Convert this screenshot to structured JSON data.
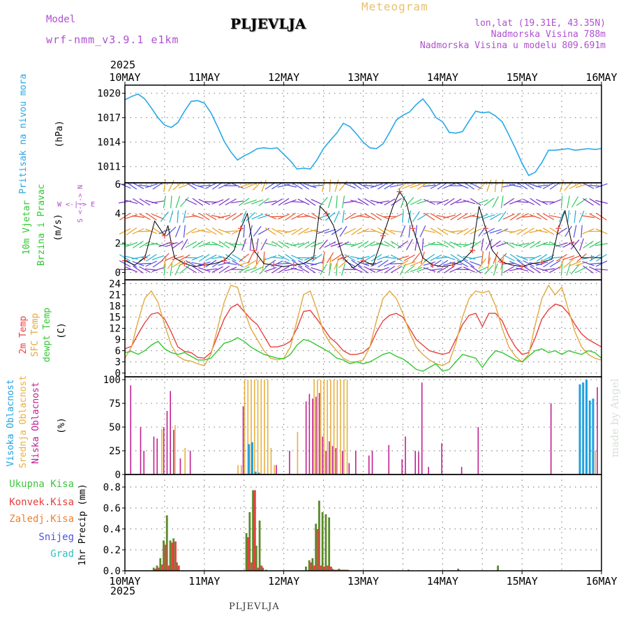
{
  "header": {
    "model_label": "Model",
    "model_name": "wrf-nmm_v3.9.1 e1km",
    "station": "PLJEVLJA",
    "meteogram": "Meteogram",
    "lonlat": "lon,lat (19.31E, 43.35N)",
    "elevation": "Nadmorska Visina 788m",
    "model_elevation": "Nadmorska Visina u modelu 809.691m",
    "year_top": "2025",
    "year_bottom": "2025",
    "footer_station": "PLJEVLJA",
    "made_by": "made by Angel"
  },
  "time_axis": {
    "labels": [
      "10MAY",
      "11MAY",
      "12MAY",
      "13MAY",
      "14MAY",
      "15MAY",
      "16MAY"
    ]
  },
  "panel_labels": {
    "pressure": {
      "title": "Pritisak na nivou mora",
      "unit": "(hPa)"
    },
    "wind": {
      "title1": "10m Vjetar",
      "title2": "Brzina i Pravac",
      "unit": "(m/s)",
      "compass": "W <-|-> E",
      "compass_ns": "S <-|-> N"
    },
    "temp": {
      "title1": "2m Temp",
      "title2": "SFC Temp",
      "title3": "dewpt Temp",
      "unit": "(C)"
    },
    "cloud": {
      "title1": "Visoka Oblacnost",
      "title2": "Srednja Oblacnost",
      "title3": "Niska Oblacnost",
      "unit": "(%)"
    },
    "precip": {
      "unit": "1hr Precip (mm)"
    }
  },
  "legend": {
    "precip_items": [
      {
        "label": "Ukupna Kisa",
        "color": "#3cc83c"
      },
      {
        "label": "Konvek.Kisa",
        "color": "#e83c3c"
      },
      {
        "label": "Zaledj.Kisa",
        "color": "#f08030"
      },
      {
        "label": "Snijeg",
        "color": "#5050e0"
      },
      {
        "label": "Grad",
        "color": "#30c0c0"
      }
    ]
  },
  "colors": {
    "pressure": "#28a8e8",
    "temp2m": "#e84040",
    "sfc": "#e0a840",
    "dewpt": "#30c830",
    "high_cloud": "#20a0e0",
    "mid_cloud": "#e8b040",
    "low_cloud": "#c02090",
    "precip_total": "#5a8a2a",
    "precip_conv": "#e84040",
    "wind_speed": "#000000"
  },
  "chart_data": [
    {
      "type": "line",
      "name": "pressure",
      "ylabel": "(hPa)",
      "ylim": [
        1009,
        1021
      ],
      "yticks": [
        1011,
        1014,
        1017,
        1020
      ],
      "x": [
        0,
        2,
        4,
        6,
        8,
        10,
        12,
        14,
        16,
        18,
        20,
        22,
        24,
        26,
        28,
        30,
        32,
        34,
        36,
        38,
        40,
        42,
        44,
        46,
        48,
        50,
        52,
        54,
        56,
        58,
        60,
        62,
        64,
        66,
        68,
        70,
        72,
        74,
        76,
        78,
        80,
        82,
        84,
        86,
        88,
        90,
        92,
        94,
        96,
        98,
        100,
        102,
        104,
        106,
        108,
        110,
        112,
        114,
        116,
        118,
        120,
        122,
        124,
        126,
        128,
        130,
        132,
        134,
        136,
        138,
        140,
        142,
        144
      ],
      "values": [
        1019.2,
        1019.6,
        1019.9,
        1019.3,
        1018.2,
        1017.0,
        1016.1,
        1015.8,
        1016.4,
        1017.8,
        1019.0,
        1019.1,
        1018.8,
        1017.6,
        1015.9,
        1014.1,
        1012.8,
        1011.8,
        1012.3,
        1012.7,
        1013.2,
        1013.3,
        1013.2,
        1013.3,
        1012.5,
        1011.7,
        1010.7,
        1010.8,
        1010.7,
        1011.8,
        1013.2,
        1014.2,
        1015.1,
        1016.3,
        1015.9,
        1015.0,
        1014.0,
        1013.3,
        1013.2,
        1013.8,
        1015.2,
        1016.7,
        1017.3,
        1017.7,
        1018.6,
        1019.3,
        1018.3,
        1017.0,
        1016.5,
        1015.2,
        1015.1,
        1015.3,
        1016.6,
        1017.8,
        1017.6,
        1017.7,
        1017.2,
        1016.5,
        1014.9,
        1013.2,
        1011.4,
        1009.9,
        1010.3,
        1011.5,
        1013.0,
        1013.0,
        1013.1,
        1013.2,
        1013.0,
        1013.1,
        1013.2,
        1013.1,
        1013.2
      ]
    },
    {
      "type": "line",
      "name": "wind",
      "ylabel": "(m/s)",
      "ylim": [
        -0.5,
        6.1
      ],
      "yticks": [
        0,
        2,
        4,
        6
      ],
      "x": [
        0,
        3,
        6,
        9,
        12,
        13,
        14,
        15,
        18,
        21,
        24,
        27,
        30,
        33,
        35,
        37,
        39,
        42,
        45,
        48,
        51,
        54,
        57,
        59,
        61,
        63,
        66,
        69,
        72,
        75,
        78,
        81,
        83,
        85,
        87,
        90,
        93,
        96,
        99,
        102,
        105,
        107,
        109,
        111,
        114,
        117,
        120,
        123,
        126,
        129,
        131,
        133,
        135,
        138,
        141,
        144
      ],
      "values": [
        0.8,
        0.5,
        1.0,
        3.5,
        2.5,
        3.2,
        2.0,
        1.0,
        0.6,
        0.4,
        0.5,
        0.6,
        0.8,
        1.5,
        3.0,
        4.0,
        1.5,
        0.6,
        0.5,
        0.4,
        0.5,
        0.6,
        1.0,
        4.5,
        4.0,
        3.2,
        1.0,
        0.3,
        0.8,
        0.5,
        2.5,
        4.5,
        5.5,
        4.8,
        3.0,
        1.0,
        0.5,
        0.4,
        0.5,
        0.8,
        1.5,
        4.5,
        3.0,
        1.5,
        0.7,
        0.5,
        0.4,
        0.6,
        0.7,
        0.9,
        3.0,
        4.2,
        2.0,
        1.0,
        1.0,
        1.0
      ]
    },
    {
      "type": "line",
      "name": "temperature",
      "ylabel": "(C)",
      "ylim": [
        -1,
        25
      ],
      "yticks": [
        0,
        3,
        6,
        9,
        12,
        15,
        18,
        21,
        24
      ],
      "x": [
        0,
        2,
        4,
        6,
        8,
        10,
        12,
        14,
        16,
        18,
        20,
        22,
        24,
        26,
        28,
        30,
        32,
        34,
        36,
        38,
        40,
        42,
        44,
        46,
        48,
        50,
        52,
        54,
        56,
        58,
        60,
        62,
        64,
        66,
        68,
        70,
        72,
        74,
        76,
        78,
        80,
        82,
        84,
        86,
        88,
        90,
        92,
        94,
        96,
        98,
        100,
        102,
        104,
        106,
        108,
        110,
        112,
        114,
        116,
        118,
        120,
        122,
        124,
        126,
        128,
        130,
        132,
        134,
        136,
        138,
        140,
        142,
        144
      ],
      "series": [
        {
          "key": "temp2m",
          "values": [
            6.5,
            7.2,
            10.5,
            13.5,
            15.8,
            16.2,
            14.5,
            11.0,
            7.0,
            5.8,
            5.5,
            4.2,
            4.0,
            5.5,
            10.0,
            14.5,
            17.5,
            18.5,
            16.5,
            14.5,
            13.0,
            10.0,
            7.0,
            7.0,
            7.5,
            8.5,
            12.0,
            16.5,
            16.8,
            14.5,
            12.0,
            9.5,
            8.0,
            6.0,
            5.0,
            5.0,
            5.5,
            7.0,
            11.0,
            14.0,
            15.5,
            16.0,
            15.0,
            12.0,
            9.0,
            7.5,
            6.0,
            5.5,
            5.0,
            5.5,
            9.0,
            13.0,
            15.5,
            16.0,
            12.5,
            16.0,
            16.0,
            14.0,
            10.0,
            7.0,
            5.0,
            5.5,
            9.5,
            14.5,
            17.0,
            18.5,
            18.0,
            16.0,
            13.0,
            10.5,
            9.0,
            8.0,
            7.0
          ]
        },
        {
          "key": "sfc",
          "values": [
            4.0,
            7.0,
            14.0,
            20.0,
            22.0,
            19.0,
            13.0,
            7.5,
            4.5,
            3.5,
            3.2,
            2.5,
            2.0,
            5.0,
            12.0,
            19.0,
            23.5,
            23.0,
            17.0,
            12.0,
            9.0,
            6.0,
            4.0,
            3.5,
            4.0,
            7.0,
            14.0,
            21.0,
            22.0,
            17.0,
            11.0,
            8.0,
            6.0,
            4.0,
            3.0,
            3.0,
            3.5,
            7.0,
            14.0,
            20.0,
            22.0,
            20.0,
            16.0,
            11.0,
            7.0,
            5.0,
            3.5,
            2.5,
            2.0,
            3.0,
            8.0,
            15.0,
            20.0,
            22.0,
            21.5,
            22.0,
            18.0,
            12.0,
            7.0,
            4.5,
            3.0,
            5.0,
            13.0,
            20.0,
            23.5,
            21.0,
            23.0,
            17.0,
            11.0,
            7.0,
            5.0,
            4.0,
            3.5
          ]
        },
        {
          "key": "dewpt",
          "values": [
            5.5,
            5.8,
            5.0,
            6.0,
            7.5,
            8.5,
            6.5,
            5.5,
            5.0,
            5.5,
            4.5,
            3.5,
            3.5,
            4.0,
            6.0,
            8.0,
            8.5,
            9.5,
            8.5,
            7.0,
            6.0,
            5.0,
            4.5,
            4.0,
            3.8,
            5.0,
            7.5,
            9.0,
            8.5,
            7.5,
            6.5,
            5.5,
            4.0,
            3.5,
            2.5,
            3.0,
            2.5,
            3.0,
            4.0,
            5.0,
            5.5,
            4.5,
            3.8,
            2.5,
            1.0,
            0.5,
            1.5,
            2.5,
            0.5,
            1.0,
            3.0,
            5.0,
            4.5,
            4.0,
            1.5,
            4.0,
            6.0,
            5.5,
            4.5,
            3.5,
            3.0,
            4.5,
            6.0,
            6.5,
            5.5,
            6.0,
            5.0,
            6.0,
            5.5,
            5.0,
            6.0,
            5.5,
            4.0
          ]
        }
      ]
    },
    {
      "type": "bar",
      "name": "cloud",
      "ylabel": "(%)",
      "ylim": [
        0,
        103
      ],
      "yticks": [
        0,
        25,
        50,
        75,
        100
      ],
      "series": [
        {
          "key": "low_cloud",
          "hours": [
            2,
            5,
            6,
            9,
            10,
            12,
            13,
            14,
            15,
            17,
            20,
            36,
            46,
            50,
            55,
            56,
            57,
            58,
            59,
            60,
            61,
            62,
            63,
            64,
            66,
            68,
            70,
            74,
            75,
            80,
            84,
            85,
            88,
            89,
            90,
            92,
            96,
            102,
            107,
            129,
            143
          ],
          "values": [
            94,
            50,
            25,
            40,
            38,
            50,
            67,
            88,
            47,
            17,
            25,
            72,
            10,
            25,
            77,
            85,
            80,
            82,
            86,
            40,
            25,
            35,
            30,
            28,
            25,
            12,
            25,
            20,
            25,
            31,
            16,
            40,
            25,
            24,
            97,
            8,
            33,
            8,
            50,
            75,
            92
          ]
        },
        {
          "key": "mid_cloud",
          "hours": [
            11,
            15,
            18,
            34,
            35,
            36,
            37,
            38,
            39,
            40,
            41,
            42,
            43,
            44,
            45,
            52,
            57,
            58,
            59,
            60,
            61,
            62,
            63,
            64,
            65,
            66,
            67,
            142
          ],
          "values": [
            48,
            52,
            28,
            10,
            10,
            100,
            100,
            100,
            100,
            100,
            100,
            100,
            100,
            28,
            10,
            45,
            100,
            100,
            100,
            100,
            100,
            100,
            100,
            100,
            100,
            100,
            100,
            25
          ]
        },
        {
          "key": "high_cloud",
          "hours": [
            37,
            38,
            39,
            40,
            137,
            138,
            139,
            140,
            141
          ],
          "values": [
            32,
            34,
            3,
            2,
            95,
            97,
            100,
            78,
            80
          ]
        }
      ]
    },
    {
      "type": "bar",
      "name": "precip",
      "ylabel": "1hr Precip (mm)",
      "ylim": [
        0,
        0.92
      ],
      "yticks": [
        0,
        0.2,
        0.4,
        0.6,
        0.8
      ],
      "series": [
        {
          "key": "precip_total",
          "hours": [
            9,
            10,
            11,
            12,
            13,
            14,
            15,
            16,
            37,
            38,
            39,
            40,
            41,
            42,
            43,
            55,
            56,
            57,
            58,
            59,
            60,
            61,
            62,
            63,
            64,
            65,
            66,
            67,
            86,
            101,
            113
          ],
          "values": [
            0.03,
            0.05,
            0.12,
            0.29,
            0.53,
            0.29,
            0.31,
            0.08,
            0.36,
            0.56,
            0.77,
            0.24,
            0.48,
            0.03,
            0.01,
            0.04,
            0.1,
            0.12,
            0.45,
            0.67,
            0.56,
            0.54,
            0.51,
            0.02,
            0.01,
            0.02,
            0.01,
            0.01,
            0.01,
            0.02,
            0.05
          ]
        },
        {
          "key": "precip_conv",
          "hours": [
            9,
            10,
            11,
            12,
            13,
            14,
            15,
            16,
            37,
            38,
            39,
            40,
            41,
            56,
            57,
            58,
            59,
            60,
            61,
            62,
            63,
            64,
            65,
            66,
            67
          ],
          "values": [
            0.02,
            0.03,
            0.06,
            0.25,
            0.05,
            0.27,
            0.28,
            0.05,
            0.32,
            0.08,
            0.77,
            0.03,
            0.05,
            0.08,
            0.05,
            0.4,
            0.05,
            0.04,
            0.05,
            0.04,
            0.01,
            0.01,
            0.01,
            0.01,
            0.01
          ]
        }
      ]
    }
  ]
}
